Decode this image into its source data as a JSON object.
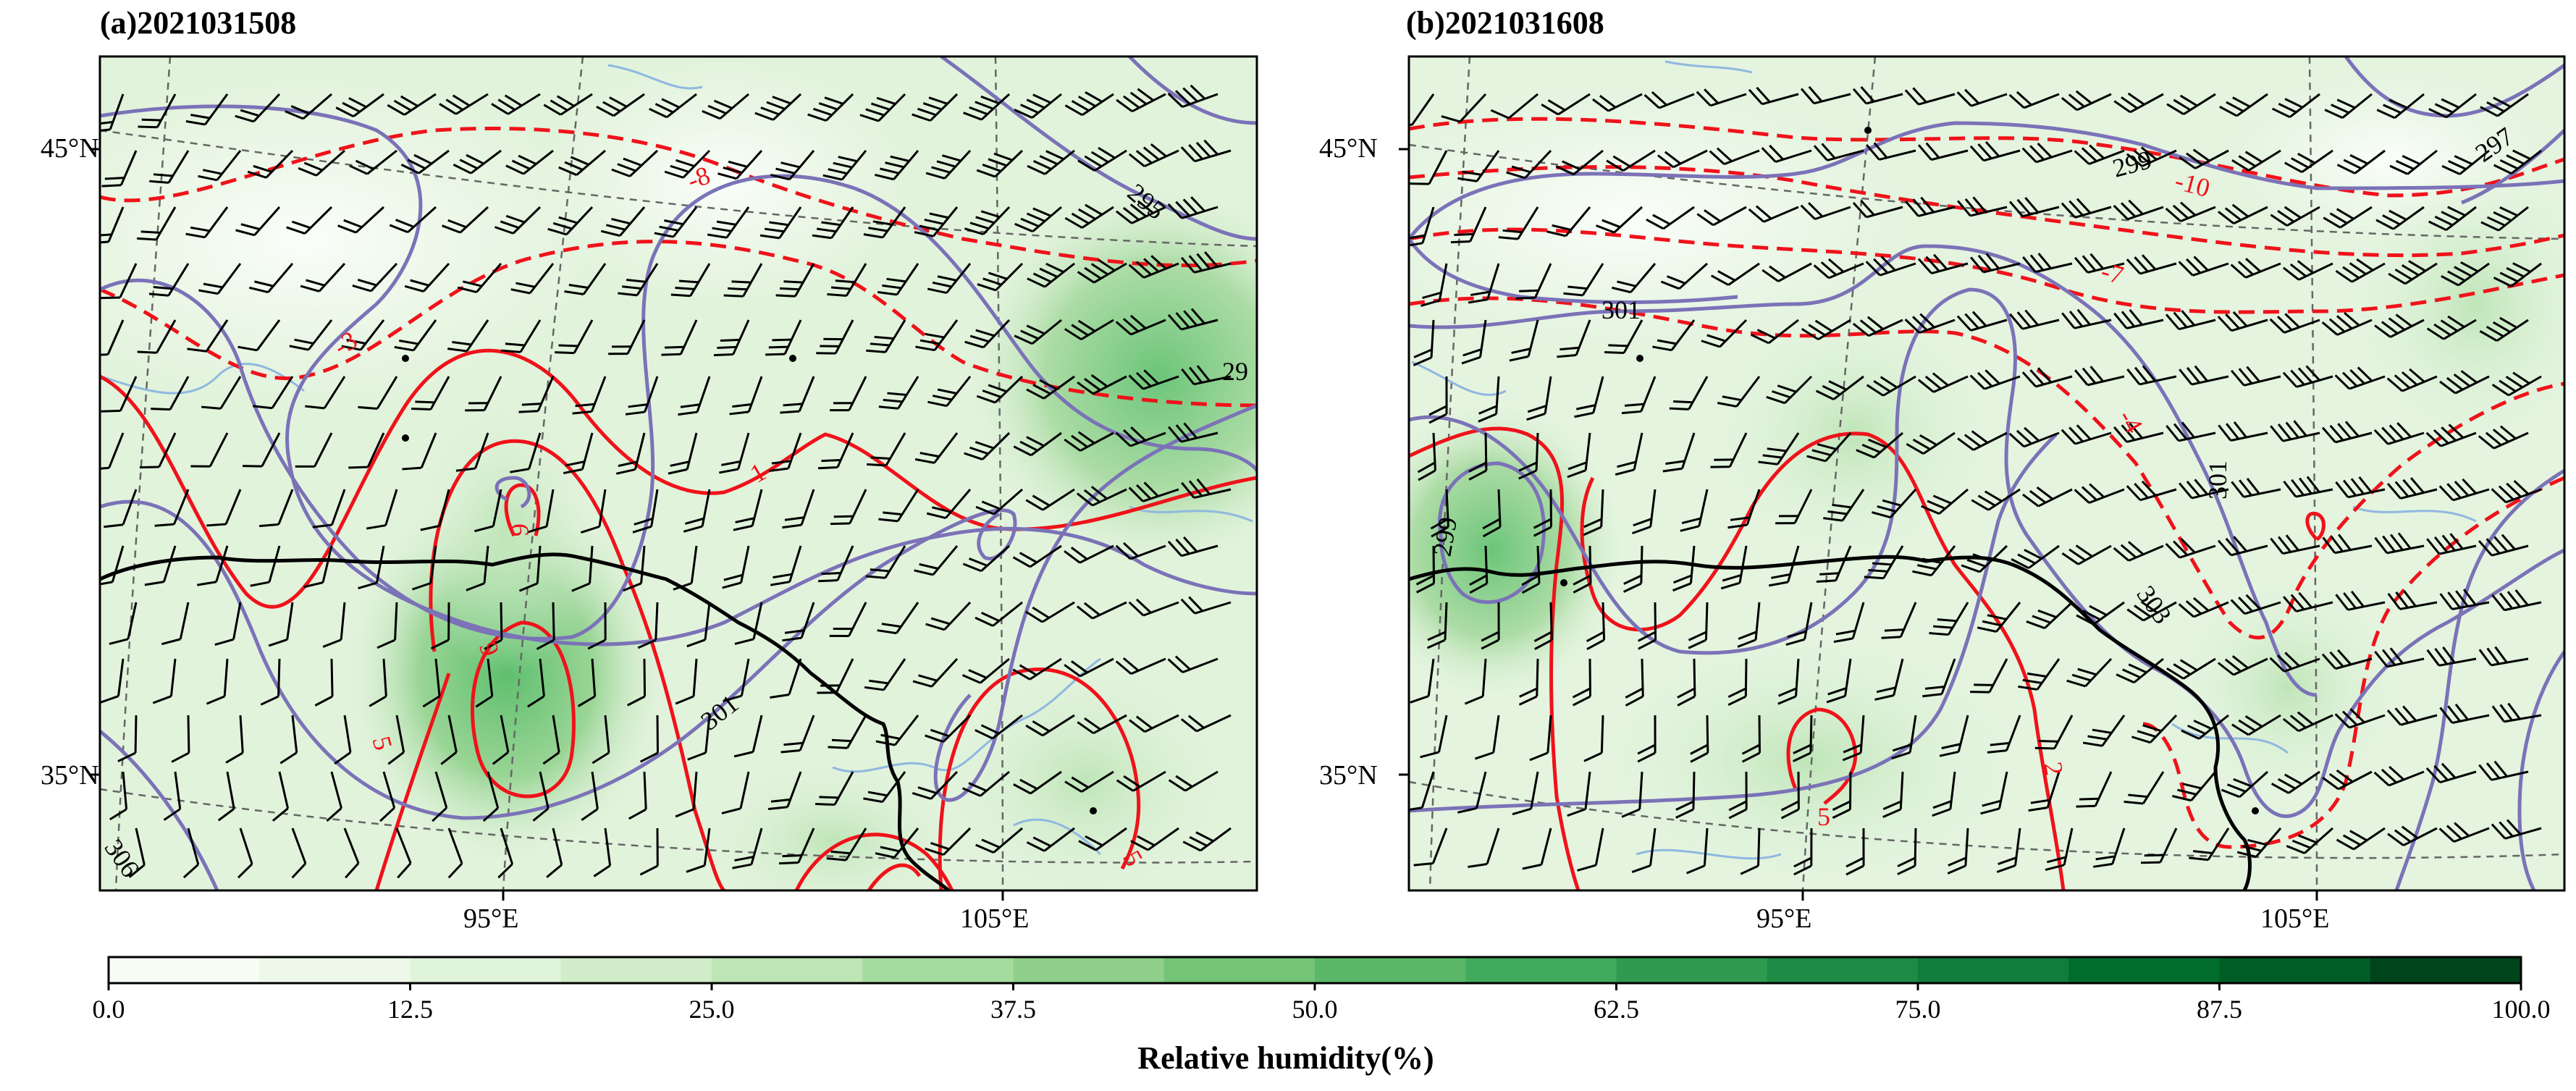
{
  "panels": [
    {
      "title": "(a)2021031508",
      "lat_labels": [
        "45°N",
        "35°N"
      ],
      "lon_labels": [
        "95°E",
        "105°E"
      ],
      "temperature_labels": [
        "295",
        "29",
        "301",
        "306"
      ],
      "anomaly_labels": [
        "-8",
        "-3",
        "1",
        "6",
        "9",
        "5",
        "5"
      ]
    },
    {
      "title": "(b)2021031608",
      "lat_labels": [
        "45°N",
        "35°N"
      ],
      "lon_labels": [
        "95°E",
        "105°E"
      ],
      "temperature_labels": [
        "299",
        "297",
        "301",
        "301",
        "299",
        "303"
      ],
      "anomaly_labels": [
        "-10",
        "-7",
        "-4",
        "2",
        "5"
      ]
    }
  ],
  "colorbar": {
    "title": "Relative humidity(%)",
    "ticks": [
      "0.0",
      "12.5",
      "25.0",
      "37.5",
      "50.0",
      "62.5",
      "75.0",
      "87.5",
      "100.0"
    ],
    "colors": [
      "#f7fcf5",
      "#edf8ea",
      "#e0f3db",
      "#d0ecc8",
      "#bde5b5",
      "#a6dba0",
      "#8ed08b",
      "#74c476",
      "#5ab768",
      "#41ab5d",
      "#2f9a50",
      "#1d8a45",
      "#117d3d",
      "#006d2c",
      "#005d25",
      "#00441b"
    ]
  },
  "legend_colors": {
    "humidity_low": "#f2faef",
    "humidity_mid": "#a6dba0",
    "humidity_high": "#5fbf6e",
    "temperature_contour": "#7b72b8",
    "anomaly_contour": "#f0121a",
    "border": "#000000",
    "river": "#8fb8e0",
    "grid": "#666666"
  }
}
